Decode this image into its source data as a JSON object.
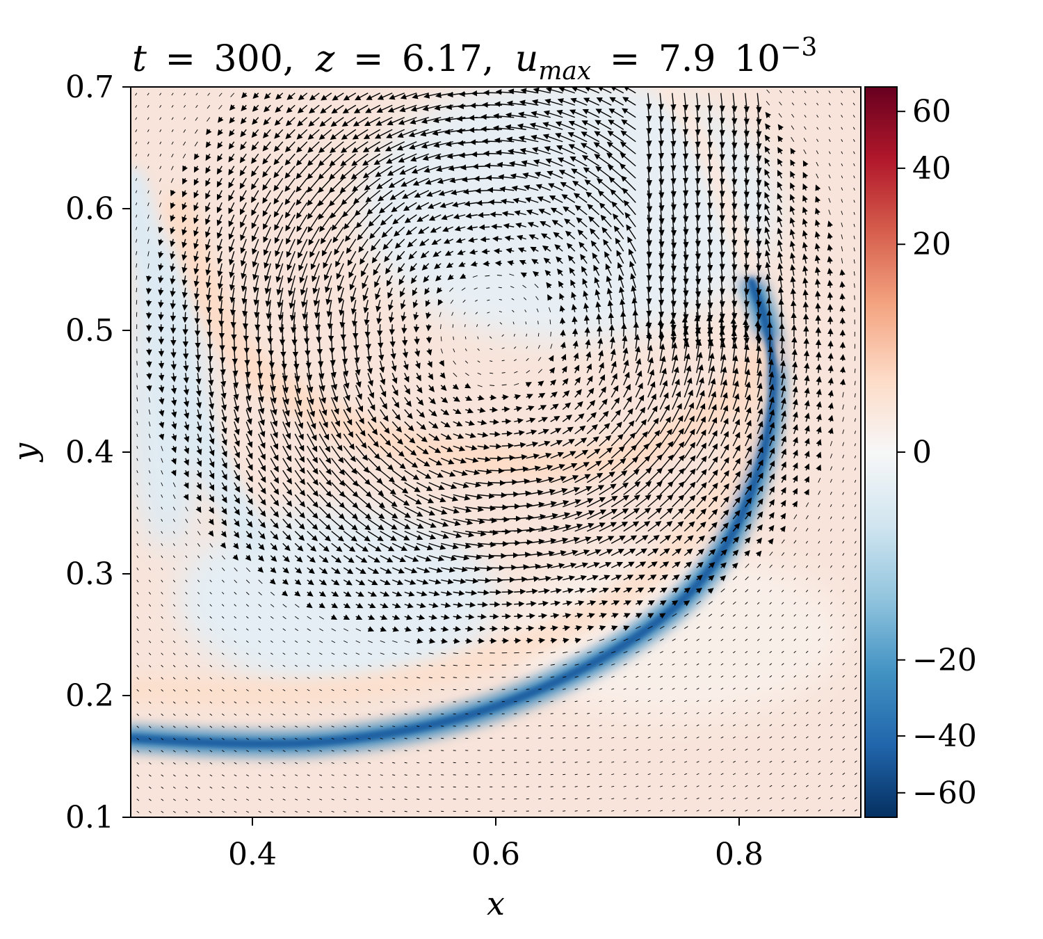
{
  "chart_data": {
    "type": "heatmap",
    "title": "t = 300, z = 6.17, u_max = 7.9 10^-3",
    "title_parts": {
      "t_label": "t",
      "t_value": "300",
      "z_label": "z",
      "z_value": "6.17",
      "u_label": "u",
      "u_sub": "max",
      "u_mantissa": "7.9",
      "u_base": "10",
      "u_exp": "−3",
      "eq": "=",
      "sep": ","
    },
    "xlabel": "x",
    "ylabel": "y",
    "xlim": [
      0.3,
      0.9
    ],
    "ylim": [
      0.1,
      0.7
    ],
    "x_ticks": [
      {
        "value": 0.4,
        "label": "0.4"
      },
      {
        "value": 0.6,
        "label": "0.6"
      },
      {
        "value": 0.8,
        "label": "0.8"
      }
    ],
    "y_ticks": [
      {
        "value": 0.1,
        "label": "0.1"
      },
      {
        "value": 0.2,
        "label": "0.2"
      },
      {
        "value": 0.3,
        "label": "0.3"
      },
      {
        "value": 0.4,
        "label": "0.4"
      },
      {
        "value": 0.5,
        "label": "0.5"
      },
      {
        "value": 0.6,
        "label": "0.6"
      },
      {
        "value": 0.7,
        "label": "0.7"
      }
    ],
    "colorbar": {
      "colormap": "RdBu_r",
      "range": [
        -70,
        70
      ],
      "scale": "symlog-like (compressed near 0)",
      "ticks": [
        {
          "value": 60,
          "label": "60"
        },
        {
          "value": 40,
          "label": "40"
        },
        {
          "value": 20,
          "label": "20"
        },
        {
          "value": 0,
          "label": "0"
        },
        {
          "value": -20,
          "label": "−20"
        },
        {
          "value": -40,
          "label": "−40"
        },
        {
          "value": -60,
          "label": "−60"
        }
      ]
    },
    "field_features": [
      {
        "kind": "negative_band",
        "curve": [
          [
            0.3,
            0.165
          ],
          [
            0.4,
            0.158
          ],
          [
            0.5,
            0.165
          ],
          [
            0.6,
            0.188
          ],
          [
            0.7,
            0.235
          ],
          [
            0.77,
            0.29
          ],
          [
            0.81,
            0.36
          ],
          [
            0.83,
            0.44
          ],
          [
            0.825,
            0.5
          ],
          [
            0.81,
            0.54
          ]
        ],
        "value": -45
      },
      {
        "kind": "positive_band",
        "curve": [
          [
            0.3,
            0.205
          ],
          [
            0.4,
            0.2
          ],
          [
            0.5,
            0.205
          ],
          [
            0.6,
            0.23
          ],
          [
            0.7,
            0.275
          ],
          [
            0.76,
            0.33
          ],
          [
            0.8,
            0.39
          ],
          [
            0.815,
            0.45
          ]
        ],
        "value": 12
      },
      {
        "kind": "positive_band",
        "curve": [
          [
            0.34,
            0.6
          ],
          [
            0.37,
            0.5
          ],
          [
            0.42,
            0.45
          ],
          [
            0.5,
            0.41
          ],
          [
            0.6,
            0.39
          ],
          [
            0.7,
            0.39
          ],
          [
            0.78,
            0.43
          ],
          [
            0.82,
            0.48
          ]
        ],
        "value": 14
      },
      {
        "kind": "positive_region",
        "curve": [
          [
            0.74,
            0.7
          ],
          [
            0.77,
            0.66
          ],
          [
            0.79,
            0.6
          ],
          [
            0.81,
            0.55
          ]
        ],
        "value": 8
      },
      {
        "kind": "negative_band",
        "curve": [
          [
            0.3,
            0.62
          ],
          [
            0.33,
            0.5
          ],
          [
            0.36,
            0.4
          ],
          [
            0.4,
            0.33
          ]
        ],
        "value": -10
      }
    ],
    "arrows": {
      "description": "velocity vector field (quiver), counter-clockwise swirl around (0.6, 0.5); strong downward flow near x≈0.8, leftward flow along the lower blue band",
      "vortex_center": [
        0.6,
        0.5
      ],
      "max_speed": 0.0079
    },
    "grid": false
  }
}
